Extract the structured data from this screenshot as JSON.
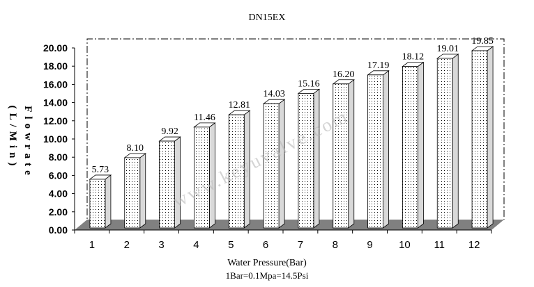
{
  "chart_data": {
    "type": "bar",
    "title": "DN15EX",
    "xlabel": "Water Pressure(Bar)",
    "xlabel_note": "1Bar=0.1Mpa=14.5Psi",
    "ylabel_lines": [
      "Flowrate",
      "(L/Min)"
    ],
    "categories": [
      "1",
      "2",
      "3",
      "4",
      "5",
      "6",
      "7",
      "8",
      "9",
      "10",
      "11",
      "12"
    ],
    "values": [
      5.73,
      8.1,
      9.92,
      11.46,
      12.81,
      14.03,
      15.16,
      16.2,
      17.19,
      18.12,
      19.01,
      19.85
    ],
    "value_labels": [
      "5.73",
      "8.10",
      "9.92",
      "11.46",
      "12.81",
      "14.03",
      "15.16",
      "16.20",
      "17.19",
      "18.12",
      "19.01",
      "19.85"
    ],
    "ylim": [
      0,
      20
    ],
    "yticks": [
      "0.00",
      "2.00",
      "4.00",
      "6.00",
      "8.00",
      "10.00",
      "12.00",
      "14.00",
      "16.00",
      "18.00",
      "20.00"
    ],
    "watermark": "www.keyuvalve.com",
    "bar_style": "3d dotted",
    "floor_color": "#808080",
    "grid": false,
    "legend": "none"
  }
}
